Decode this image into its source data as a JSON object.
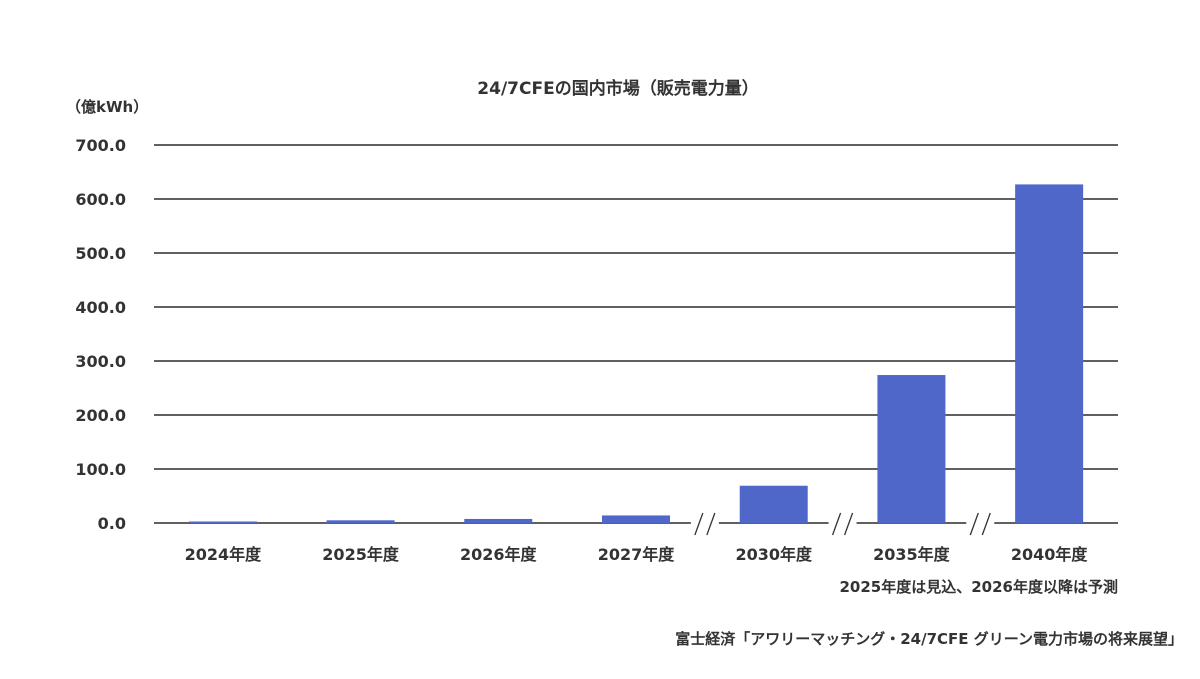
{
  "chart_data": {
    "type": "bar",
    "title": "24/7CFEの国内市場（販売電力量）",
    "ylabel": "（億kWh）",
    "categories": [
      "2024年度",
      "2025年度",
      "2026年度",
      "2027年度",
      "2030年度",
      "2035年度",
      "2040年度"
    ],
    "series": [
      {
        "values": [
          2.5,
          5,
          7.5,
          14,
          69,
          274,
          627
        ]
      }
    ],
    "ylim": [
      0,
      700
    ],
    "yticks": [
      "0.0",
      "100.0",
      "200.0",
      "300.0",
      "400.0",
      "500.0",
      "600.0",
      "700.0"
    ],
    "grid": true,
    "axis_breaks_after": [
      "2027年度",
      "2030年度",
      "2035年度"
    ],
    "bar_color": "#4f67c8",
    "note": "2025年度は見込、2026年度以降は予測",
    "source": "富士経済「アワリーマッチング・24/7CFE グリーン電力市場の将来展望」"
  }
}
